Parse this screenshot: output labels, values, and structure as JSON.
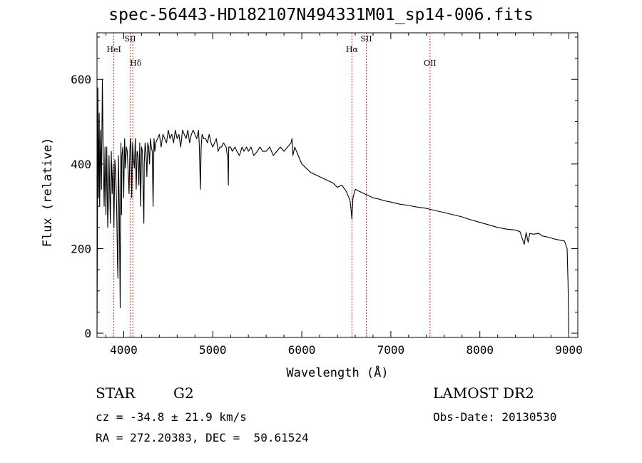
{
  "chart_data": {
    "type": "line",
    "title": "spec-56443-HD182107N494331M01_sp14-006.fits",
    "xlabel": "Wavelength (Å)",
    "ylabel": "Flux (relative)",
    "xlim": [
      3700,
      9100
    ],
    "ylim": [
      -10,
      710
    ],
    "xticks": [
      4000,
      5000,
      6000,
      7000,
      8000,
      9000
    ],
    "yticks": [
      0,
      200,
      400,
      600
    ],
    "grid": false,
    "series": [
      {
        "x": [
          3700,
          3705,
          3710,
          3715,
          3720,
          3725,
          3730,
          3740,
          3750,
          3760,
          3770,
          3780,
          3790,
          3800,
          3810,
          3820,
          3830,
          3835,
          3840,
          3850,
          3860,
          3870,
          3880,
          3890,
          3900,
          3910,
          3920,
          3930,
          3935,
          3940,
          3950,
          3960,
          3968,
          3975,
          3980,
          3990,
          4000,
          4010,
          4020,
          4030,
          4040,
          4050,
          4060,
          4070,
          4080,
          4090,
          4100,
          4110,
          4120,
          4130,
          4140,
          4150,
          4160,
          4170,
          4180,
          4190,
          4200,
          4210,
          4220,
          4226,
          4230,
          4240,
          4250,
          4260,
          4270,
          4280,
          4290,
          4300,
          4310,
          4320,
          4330,
          4340,
          4350,
          4360,
          4380,
          4400,
          4420,
          4440,
          4460,
          4480,
          4500,
          4520,
          4540,
          4560,
          4580,
          4600,
          4620,
          4640,
          4660,
          4680,
          4700,
          4720,
          4740,
          4760,
          4780,
          4800,
          4820,
          4840,
          4850,
          4861,
          4870,
          4880,
          4900,
          4920,
          4940,
          4960,
          4980,
          5000,
          5020,
          5040,
          5060,
          5080,
          5100,
          5120,
          5150,
          5170,
          5175,
          5180,
          5200,
          5220,
          5250,
          5270,
          5300,
          5330,
          5350,
          5380,
          5400,
          5430,
          5460,
          5500,
          5530,
          5560,
          5600,
          5640,
          5680,
          5720,
          5760,
          5800,
          5840,
          5880,
          5890,
          5900,
          5920,
          5940,
          5960,
          5980,
          6000,
          6050,
          6100,
          6150,
          6200,
          6250,
          6300,
          6350,
          6400,
          6450,
          6500,
          6520,
          6540,
          6550,
          6563,
          6575,
          6600,
          6650,
          6700,
          6750,
          6800,
          6850,
          6900,
          6950,
          7000,
          7100,
          7200,
          7300,
          7400,
          7500,
          7600,
          7700,
          7800,
          7900,
          8000,
          8100,
          8200,
          8300,
          8400,
          8450,
          8498,
          8520,
          8542,
          8560,
          8600,
          8662,
          8700,
          8750,
          8800,
          8850,
          8900,
          8950,
          8980,
          8990,
          9000
        ],
        "y": [
          0,
          270,
          580,
          320,
          420,
          520,
          300,
          480,
          340,
          600,
          420,
          300,
          440,
          280,
          440,
          250,
          330,
          420,
          360,
          260,
          430,
          330,
          400,
          250,
          410,
          380,
          300,
          170,
          130,
          420,
          300,
          60,
          450,
          280,
          420,
          440,
          320,
          460,
          390,
          440,
          430,
          380,
          330,
          440,
          460,
          320,
          450,
          410,
          390,
          460,
          340,
          430,
          420,
          350,
          450,
          300,
          440,
          430,
          320,
          260,
          400,
          450,
          430,
          370,
          450,
          440,
          400,
          460,
          440,
          430,
          300,
          460,
          430,
          450,
          460,
          470,
          440,
          470,
          460,
          450,
          480,
          460,
          470,
          450,
          480,
          460,
          470,
          440,
          480,
          470,
          460,
          480,
          450,
          470,
          480,
          470,
          460,
          480,
          440,
          340,
          440,
          470,
          460,
          460,
          450,
          470,
          450,
          440,
          450,
          460,
          430,
          440,
          440,
          450,
          440,
          410,
          350,
          440,
          440,
          430,
          440,
          430,
          420,
          440,
          430,
          440,
          430,
          440,
          420,
          430,
          440,
          430,
          430,
          440,
          420,
          430,
          440,
          430,
          440,
          450,
          460,
          420,
          440,
          430,
          420,
          410,
          400,
          390,
          380,
          375,
          370,
          365,
          360,
          355,
          345,
          350,
          335,
          325,
          315,
          300,
          270,
          320,
          340,
          335,
          330,
          325,
          320,
          318,
          315,
          312,
          310,
          305,
          302,
          298,
          295,
          290,
          285,
          280,
          275,
          268,
          262,
          256,
          250,
          246,
          244,
          240,
          210,
          238,
          215,
          236,
          234,
          236,
          230,
          228,
          225,
          222,
          220,
          218,
          200,
          120,
          0
        ]
      }
    ],
    "lines": [
      {
        "label": "HeI",
        "x": 3889
      },
      {
        "label": "SII",
        "x": 4072
      },
      {
        "label": "Hδ",
        "x": 4102
      },
      {
        "label": "Hα",
        "x": 6563
      },
      {
        "label": "SII",
        "x": 6725
      },
      {
        "label": "OII",
        "x": 7440
      }
    ]
  },
  "info": {
    "class": "STAR",
    "subclass": "G2",
    "survey": "LAMOST DR2",
    "cz": "cz = -34.8 ± 21.9 km/s",
    "obs_date": "Obs-Date: 20130530",
    "coords": "RA = 272.20383, DEC =  50.61524"
  },
  "colors": {
    "axes": "#000000",
    "spectrum": "#000000",
    "line_markers": "#c03020"
  }
}
